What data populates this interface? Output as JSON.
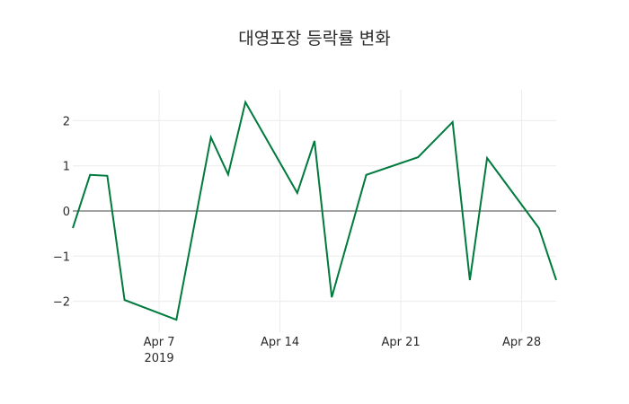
{
  "chart_data": {
    "type": "line",
    "title": "대영포장 등락률 변화",
    "xlabel": "",
    "ylabel": "",
    "x": [
      "2019-04-02",
      "2019-04-03",
      "2019-04-04",
      "2019-04-05",
      "2019-04-08",
      "2019-04-10",
      "2019-04-11",
      "2019-04-12",
      "2019-04-15",
      "2019-04-16",
      "2019-04-17",
      "2019-04-19",
      "2019-04-22",
      "2019-04-24",
      "2019-04-25",
      "2019-04-26",
      "2019-04-29",
      "2019-04-30"
    ],
    "series": [
      {
        "name": "등락률",
        "color": "#007a3d",
        "values": [
          -0.38,
          0.8,
          0.78,
          -1.97,
          -2.41,
          1.63,
          0.81,
          2.41,
          0.4,
          1.55,
          -1.91,
          0.8,
          1.19,
          1.97,
          -1.53,
          1.17,
          -0.38,
          -1.53
        ]
      }
    ],
    "ylim": [
      -2.6,
      2.65
    ],
    "xlim": [
      "2019-04-02",
      "2019-04-30"
    ],
    "y_ticks": [
      2,
      1,
      0,
      -1,
      -2
    ],
    "y_tick_labels": [
      "2",
      "1",
      "0",
      "−1",
      "−2"
    ],
    "x_ticks": [
      "2019-04-07",
      "2019-04-14",
      "2019-04-21",
      "2019-04-28"
    ],
    "x_tick_labels": [
      [
        "Apr 7",
        "2019"
      ],
      [
        "Apr 14"
      ],
      [
        "Apr 21"
      ],
      [
        "Apr 28"
      ]
    ],
    "grid": true,
    "zero_line": true,
    "legend": false
  }
}
